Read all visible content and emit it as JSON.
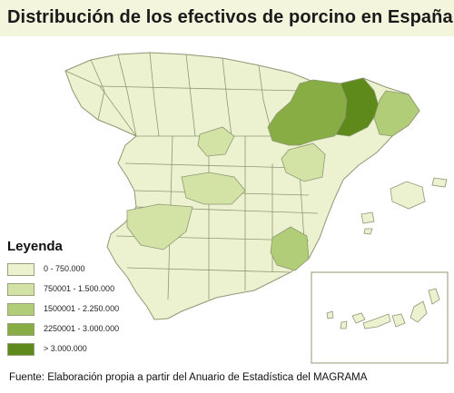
{
  "title": "Distribución de los efectivos de porcino en España",
  "legend": {
    "title": "Leyenda",
    "items": [
      {
        "label": "0 - 750.000",
        "color": "#ecf2cf"
      },
      {
        "label": "750001 - 1.500.000",
        "color": "#d3e3a6"
      },
      {
        "label": "1500001 - 2.250.000",
        "color": "#b2cd77"
      },
      {
        "label": "2250001 - 3.000.000",
        "color": "#88ad45"
      },
      {
        "label": "> 3.000.000",
        "color": "#5e8a1c"
      }
    ]
  },
  "source": "Fuente: Elaboración propia a partir del Anuario de Estadística del MAGRAMA",
  "colors": {
    "border": "#8f9774",
    "background": "#ffffff",
    "title_band": "#f3f5dc"
  }
}
